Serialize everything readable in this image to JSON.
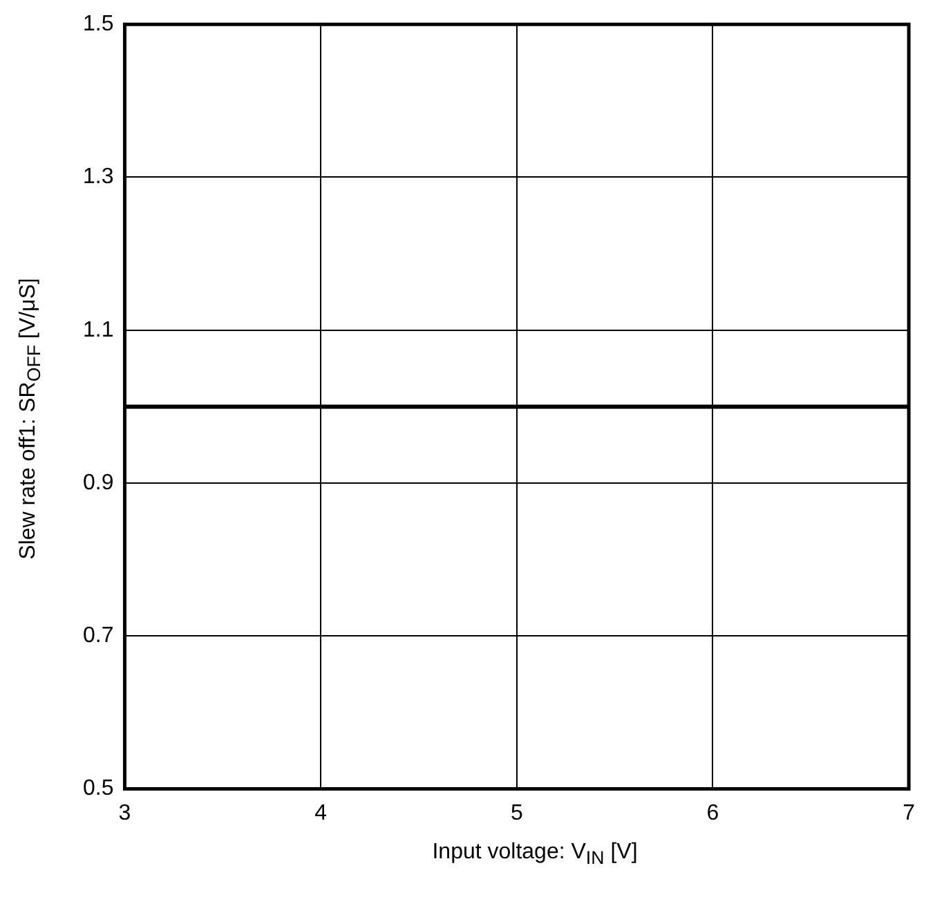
{
  "chart_data": {
    "type": "line",
    "xlabel": "Input voltage: V$_{IN}$ [V]",
    "ylabel": "Slew rate off1: SR$_{OFF}$ [V/μS]",
    "xlim": [
      3,
      7
    ],
    "xticks": [
      3,
      4,
      5,
      6,
      7
    ],
    "ylim": [
      0.5,
      1.5
    ],
    "yticks": [
      0.5,
      0.7,
      0.9,
      1.1,
      1.3,
      1.5
    ],
    "grid": true,
    "legend": false,
    "marker": "none",
    "line_style": "solid",
    "series": [
      {
        "color": "#000000",
        "x": [
          3,
          7
        ],
        "values": [
          1.0,
          1.0
        ]
      }
    ]
  }
}
